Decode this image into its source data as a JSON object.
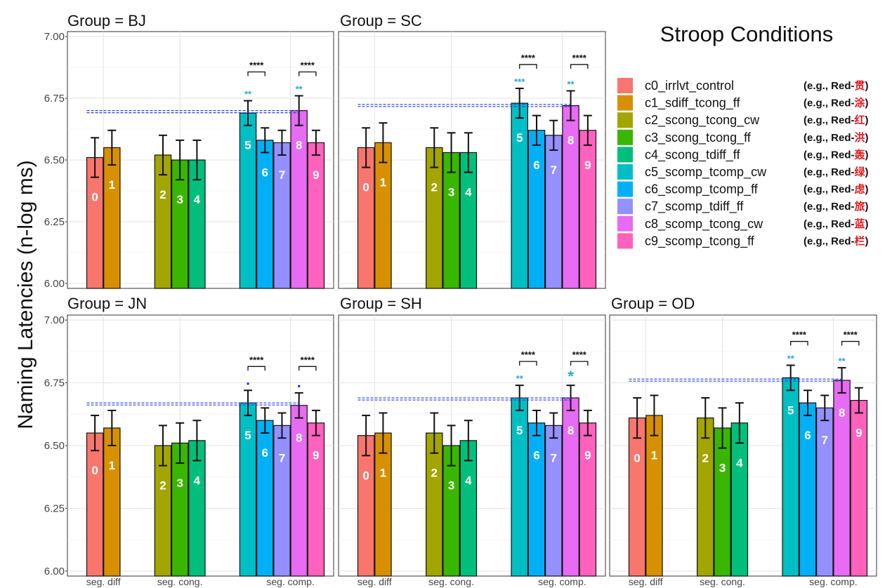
{
  "chart_data": {
    "type": "bar",
    "ylabel": "Naming Latencies (n-log ms)",
    "ylim": [
      5.98,
      7.02
    ],
    "yticks": [
      "6.00",
      "6.25",
      "6.50",
      "6.75",
      "7.00"
    ],
    "categories": [
      "seg. diff",
      "seg. cong.",
      "seg. comp."
    ],
    "legend": {
      "title": "Stroop Conditions",
      "placement": "top-right",
      "items": [
        {
          "id": "0",
          "name": "c0_irrlvt_control",
          "eg": "(e.g., Red-",
          "char": "贯",
          "close": ")",
          "color": "#F8766D"
        },
        {
          "id": "1",
          "name": "c1_sdiff_tcong_ff",
          "eg": "(e.g., Red-",
          "char": "涂",
          "close": ")",
          "color": "#D89000"
        },
        {
          "id": "2",
          "name": "c2_scong_tcong_cw",
          "eg": "(e.g., Red-",
          "char": "红",
          "close": ")",
          "color": "#A3A500"
        },
        {
          "id": "3",
          "name": "c3_scong_tcong_ff",
          "eg": "(e.g., Red-",
          "char": "洪",
          "close": ")",
          "color": "#39B600"
        },
        {
          "id": "4",
          "name": "c4_scong_tdiff_ff",
          "eg": "(e.g., Red-",
          "char": "轰",
          "close": ")",
          "color": "#00BF7D"
        },
        {
          "id": "5",
          "name": "c5_scomp_tcomp_cw",
          "eg": "(e.g., Red-",
          "char": "绿",
          "close": ")",
          "color": "#00BFC4"
        },
        {
          "id": "6",
          "name": "c6_scomp_tcomp_ff",
          "eg": "(e.g., Red-",
          "char": "虑",
          "close": ")",
          "color": "#00B0F6"
        },
        {
          "id": "7",
          "name": "c7_scomp_tdiff_ff",
          "eg": "(e.g., Red-",
          "char": "旅",
          "close": ")",
          "color": "#9590FF"
        },
        {
          "id": "8",
          "name": "c8_scomp_tcong_cw",
          "eg": "(e.g., Red-",
          "char": "蓝",
          "close": ")",
          "color": "#E76BF3"
        },
        {
          "id": "9",
          "name": "c9_scomp_tcong_ff",
          "eg": "(e.g., Red-",
          "char": "栏",
          "close": ")",
          "color": "#FF62BC"
        }
      ]
    },
    "panels": [
      {
        "title": "Group = BJ",
        "values": [
          6.51,
          6.55,
          6.52,
          6.5,
          6.5,
          6.69,
          6.58,
          6.57,
          6.7,
          6.57
        ],
        "err": [
          0.08,
          0.07,
          0.08,
          0.08,
          0.08,
          0.05,
          0.05,
          0.05,
          0.06,
          0.05
        ],
        "ref": 6.7,
        "sig_bracket_5_6": "****",
        "sig_bracket_8_9": "****",
        "sig5": "**",
        "sig8": "**",
        "show_xlabels": false
      },
      {
        "title": "Group = SC",
        "values": [
          6.55,
          6.57,
          6.55,
          6.53,
          6.53,
          6.73,
          6.62,
          6.6,
          6.72,
          6.62
        ],
        "err": [
          0.08,
          0.08,
          0.08,
          0.08,
          0.08,
          0.06,
          0.06,
          0.06,
          0.06,
          0.06
        ],
        "ref": 6.725,
        "sig_bracket_5_6": "****",
        "sig_bracket_8_9": "****",
        "sig5": "***",
        "sig8": "**",
        "show_xlabels": false
      },
      {
        "title": "Group = JN",
        "values": [
          6.55,
          6.57,
          6.5,
          6.51,
          6.52,
          6.67,
          6.6,
          6.58,
          6.66,
          6.59
        ],
        "err": [
          0.07,
          0.07,
          0.08,
          0.08,
          0.08,
          0.05,
          0.05,
          0.05,
          0.05,
          0.05
        ],
        "ref": 6.67,
        "sig_bracket_5_6": "****",
        "sig_bracket_8_9": "****",
        "sig5": ".",
        "sig8": ".",
        "show_xlabels": true
      },
      {
        "title": "Group = SH",
        "values": [
          6.54,
          6.55,
          6.55,
          6.5,
          6.52,
          6.69,
          6.59,
          6.58,
          6.69,
          6.59
        ],
        "err": [
          0.08,
          0.08,
          0.08,
          0.08,
          0.08,
          0.05,
          0.05,
          0.05,
          0.05,
          0.05
        ],
        "ref": 6.69,
        "sig_bracket_5_6": "****",
        "sig_bracket_8_9": "****",
        "sig5": "**",
        "sig8": "*",
        "show_xlabels": true
      },
      {
        "title": "Group = OD",
        "values": [
          6.61,
          6.62,
          6.61,
          6.57,
          6.59,
          6.77,
          6.67,
          6.65,
          6.76,
          6.68
        ],
        "err": [
          0.08,
          0.08,
          0.08,
          0.08,
          0.08,
          0.05,
          0.05,
          0.05,
          0.05,
          0.05
        ],
        "ref": 6.765,
        "sig_bracket_5_6": "****",
        "sig_bracket_8_9": "****",
        "sig5": "**",
        "sig8": "**",
        "show_xlabels": true
      }
    ]
  }
}
